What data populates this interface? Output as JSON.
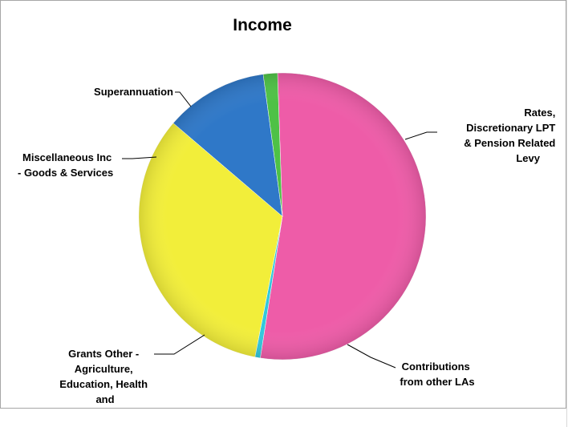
{
  "chart_data": {
    "type": "pie",
    "title": "Income",
    "slices": [
      {
        "label": "Rates, Discretionary LPT & Pension Related Levy",
        "value": 53.0,
        "color": "#ee5ca8"
      },
      {
        "label": "Contributions from other LAs",
        "value": 0.6,
        "color": "#32c8dc"
      },
      {
        "label": "Grants Other - Agriculture, Education, Health and",
        "value": 33.2,
        "color": "#f2ee3a"
      },
      {
        "label": "Miscellaneous Inc - Goods & Services",
        "value": 11.6,
        "color": "#2f78c8"
      },
      {
        "label": "Superannuation",
        "value": 1.6,
        "color": "#4ec146"
      }
    ],
    "legend": "none",
    "labels": {
      "rates": [
        "Rates,",
        "Discretionary LPT",
        "& Pension Related",
        "Levy"
      ],
      "contributions": [
        "Contributions",
        "from other LAs"
      ],
      "grants": [
        "Grants Other -",
        "Agriculture,",
        "Education, Health",
        "and"
      ],
      "misc": [
        "Miscellaneous Inc",
        "- Goods & Services"
      ],
      "super": [
        "Superannuation"
      ]
    }
  }
}
